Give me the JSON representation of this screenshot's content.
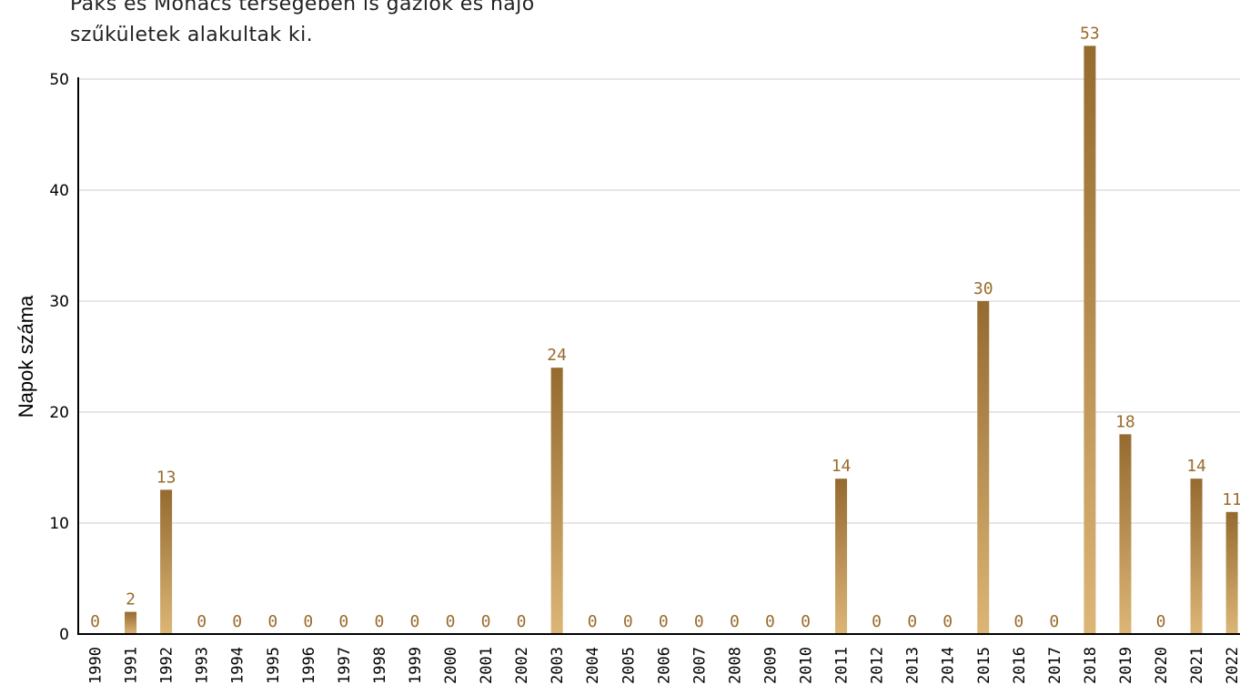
{
  "intro": {
    "line1": "Paks és Mohács térségében is gázlók és hajó",
    "line2": "szűkületek alakultak ki."
  },
  "chart_data": {
    "type": "bar",
    "title": "",
    "xlabel": "",
    "ylabel": "Napok száma",
    "ylim": [
      0,
      53
    ],
    "yticks": [
      0,
      10,
      20,
      30,
      40,
      50
    ],
    "grid": true,
    "categories": [
      "1990",
      "1991",
      "1992",
      "1993",
      "1994",
      "1995",
      "1996",
      "1997",
      "1998",
      "1999",
      "2000",
      "2001",
      "2002",
      "2003",
      "2004",
      "2005",
      "2006",
      "2007",
      "2008",
      "2009",
      "2010",
      "2011",
      "2012",
      "2013",
      "2014",
      "2015",
      "2016",
      "2017",
      "2018",
      "2019",
      "2020",
      "2021",
      "2022"
    ],
    "values": [
      0,
      2,
      13,
      0,
      0,
      0,
      0,
      0,
      0,
      0,
      0,
      0,
      0,
      24,
      0,
      0,
      0,
      0,
      0,
      0,
      0,
      14,
      0,
      0,
      0,
      30,
      0,
      0,
      53,
      18,
      0,
      14,
      11
    ],
    "colors": {
      "bar_top": "#956a2f",
      "bar_bottom": "#dcb677",
      "label": "#9a6b2c"
    }
  }
}
